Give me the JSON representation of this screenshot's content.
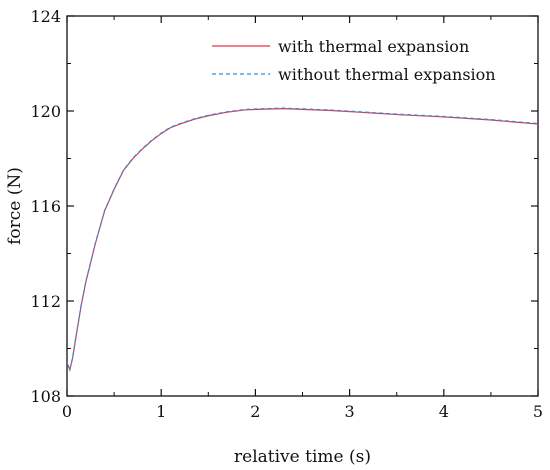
{
  "chart_data": {
    "type": "line",
    "xlabel": "relative time (s)",
    "ylabel": "force (N)",
    "xlim": [
      0,
      5
    ],
    "ylim": [
      108,
      124
    ],
    "xticks": [
      0,
      1,
      2,
      3,
      4,
      5
    ],
    "yticks": [
      108,
      112,
      116,
      120,
      124
    ],
    "x_tick_labels": [
      "0",
      "1",
      "2",
      "3",
      "4",
      "5"
    ],
    "y_tick_labels": [
      "108",
      "112",
      "116",
      "120",
      "124"
    ],
    "grid": false,
    "legend_position": "top-right",
    "series": [
      {
        "name": "with thermal expansion",
        "color": "#e8334a",
        "line_style": "solid",
        "x": [
          0.0,
          0.03,
          0.06,
          0.1,
          0.15,
          0.2,
          0.3,
          0.4,
          0.5,
          0.6,
          0.7,
          0.8,
          0.9,
          1.0,
          1.1,
          1.2,
          1.35,
          1.5,
          1.7,
          1.9,
          2.1,
          2.3,
          2.5,
          2.8,
          3.1,
          3.5,
          4.0,
          4.5,
          5.0
        ],
        "y": [
          109.4,
          109.1,
          109.6,
          110.6,
          111.8,
          112.8,
          114.4,
          115.8,
          116.7,
          117.5,
          118.0,
          118.4,
          118.75,
          119.05,
          119.3,
          119.45,
          119.65,
          119.8,
          119.95,
          120.05,
          120.08,
          120.1,
          120.07,
          120.02,
          119.95,
          119.85,
          119.75,
          119.62,
          119.45
        ]
      },
      {
        "name": "without thermal expansion",
        "color": "#2b8fd6",
        "line_style": "dashed",
        "x": [
          0.0,
          0.03,
          0.06,
          0.1,
          0.15,
          0.2,
          0.3,
          0.4,
          0.5,
          0.6,
          0.7,
          0.8,
          0.9,
          1.0,
          1.1,
          1.2,
          1.35,
          1.5,
          1.7,
          1.9,
          2.1,
          2.3,
          2.5,
          2.8,
          3.1,
          3.5,
          4.0,
          4.5,
          5.0
        ],
        "y": [
          109.4,
          109.12,
          109.62,
          110.62,
          111.82,
          112.82,
          114.42,
          115.82,
          116.72,
          117.52,
          118.02,
          118.42,
          118.77,
          119.07,
          119.32,
          119.47,
          119.67,
          119.82,
          119.97,
          120.07,
          120.1,
          120.12,
          120.09,
          120.04,
          119.97,
          119.87,
          119.77,
          119.64,
          119.47
        ]
      }
    ]
  }
}
